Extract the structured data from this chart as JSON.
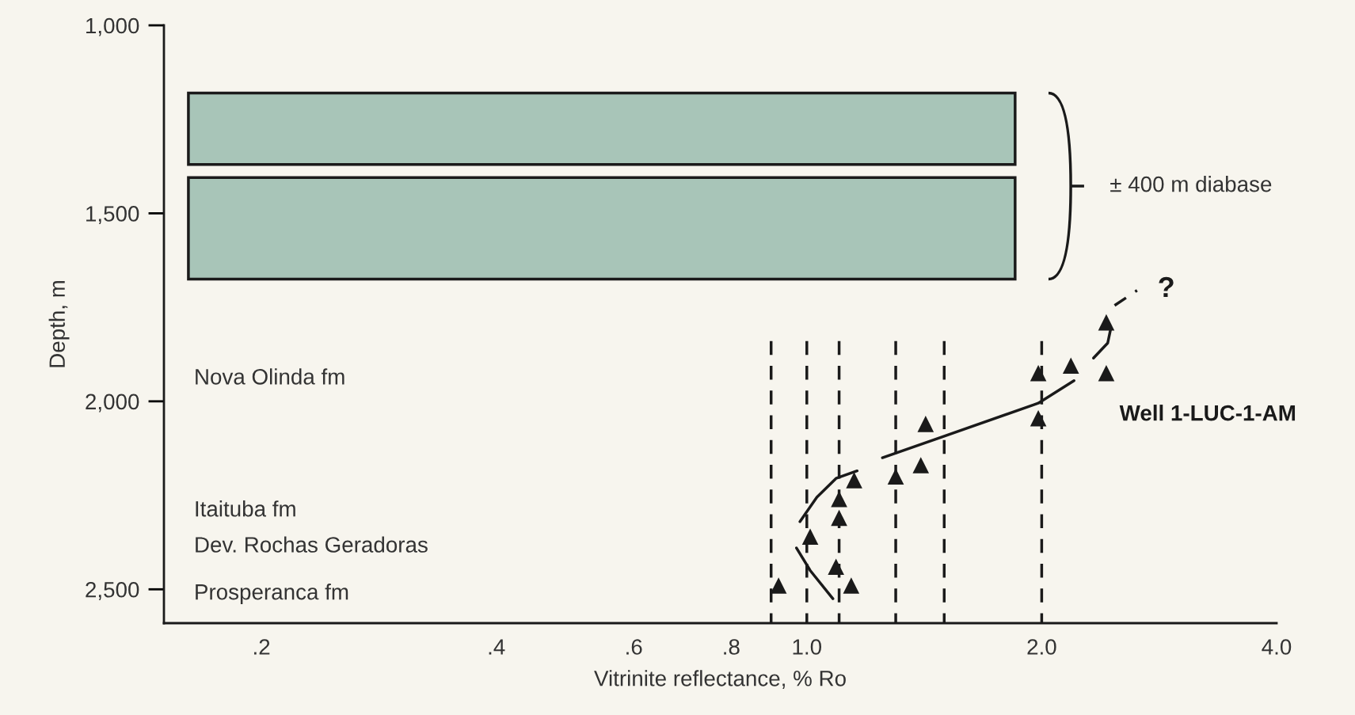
{
  "chart_data": {
    "type": "scatter",
    "xlabel": "Vitrinite reflectance, % Ro",
    "ylabel": "Depth, m",
    "log": "x",
    "grid": false,
    "legend": false,
    "xlim": [
      0.15,
      4.0
    ],
    "xticks": [
      {
        "value": 0.2,
        "label": ".2"
      },
      {
        "value": 0.4,
        "label": ".4"
      },
      {
        "value": 0.6,
        "label": ".6"
      },
      {
        "value": 0.8,
        "label": ".8"
      },
      {
        "value": 1.0,
        "label": "1.0"
      },
      {
        "value": 2.0,
        "label": "2.0"
      },
      {
        "value": 4.0,
        "label": "4.0"
      }
    ],
    "ylim": [
      2590,
      1000
    ],
    "yticks": [
      {
        "value": 1000,
        "label": "1,000"
      },
      {
        "value": 1500,
        "label": "1,500"
      },
      {
        "value": 2000,
        "label": "2,000"
      },
      {
        "value": 2500,
        "label": "2,500"
      }
    ],
    "bands": [
      {
        "axis": "y",
        "from": 1180,
        "to": 1370,
        "color": "#a8c5b8"
      },
      {
        "axis": "y",
        "from": 1405,
        "to": 1675,
        "color": "#a8c5b8"
      }
    ],
    "series": [
      {
        "marker": "triangle",
        "name": "Well 1-LUC-1-AM",
        "color": "#1a1a1a",
        "x": [
          0.92,
          1.01,
          1.09,
          1.14,
          1.1,
          1.1,
          1.15,
          1.3,
          1.4,
          1.42,
          1.98,
          1.98,
          2.18,
          2.42,
          2.42
        ],
        "values": [
          2490,
          2360,
          2440,
          2490,
          2310,
          2260,
          2210,
          2200,
          2170,
          2060,
          2045,
          1925,
          1905,
          1925,
          1790
        ]
      },
      {
        "type": "line",
        "line_style": "solid",
        "color": "#1a1a1a",
        "x": [
          1.25,
          1.49,
          1.98,
          2.2
        ],
        "values": [
          2150,
          2095,
          2005,
          1945
        ]
      },
      {
        "type": "line",
        "line_style": "solid",
        "color": "#1a1a1a",
        "x": [
          2.33,
          2.43,
          2.45
        ],
        "values": [
          1885,
          1845,
          1810
        ]
      },
      {
        "type": "line",
        "line_style": "dashed",
        "color": "#1a1a1a",
        "x": [
          2.48,
          2.65
        ],
        "values": [
          1745,
          1705
        ]
      },
      {
        "type": "line",
        "line_style": "solid",
        "color": "#1a1a1a",
        "x": [
          1.16,
          1.09,
          1.03,
          0.98
        ],
        "values": [
          2185,
          2205,
          2255,
          2320
        ]
      },
      {
        "type": "line",
        "line_style": "solid",
        "color": "#1a1a1a",
        "x": [
          0.97,
          1.01,
          1.08
        ],
        "values": [
          2390,
          2450,
          2525
        ]
      },
      {
        "type": "line",
        "line_style": "dashed",
        "color": "#1a1a1a",
        "x": [
          0.9,
          0.9
        ],
        "values": [
          1840,
          2590
        ]
      },
      {
        "type": "line",
        "line_style": "dashed",
        "color": "#1a1a1a",
        "x": [
          1.0,
          1.0
        ],
        "values": [
          1840,
          2590
        ]
      },
      {
        "type": "line",
        "line_style": "dashed",
        "color": "#1a1a1a",
        "x": [
          1.1,
          1.1
        ],
        "values": [
          1840,
          2590
        ]
      },
      {
        "type": "line",
        "line_style": "dashed",
        "color": "#1a1a1a",
        "x": [
          1.3,
          1.3
        ],
        "values": [
          1840,
          2590
        ]
      },
      {
        "type": "line",
        "line_style": "dashed",
        "color": "#1a1a1a",
        "x": [
          1.5,
          1.5
        ],
        "values": [
          1840,
          2590
        ]
      },
      {
        "type": "line",
        "line_style": "dashed",
        "color": "#1a1a1a",
        "x": [
          2.0,
          2.0
        ],
        "values": [
          1840,
          2590
        ]
      }
    ],
    "annotations": [
      "?",
      "± 400 m diabase",
      "Nova Olinda fm",
      "Itaituba fm",
      "Dev. Rochas Geradoras",
      "Prosperanca fm"
    ]
  }
}
